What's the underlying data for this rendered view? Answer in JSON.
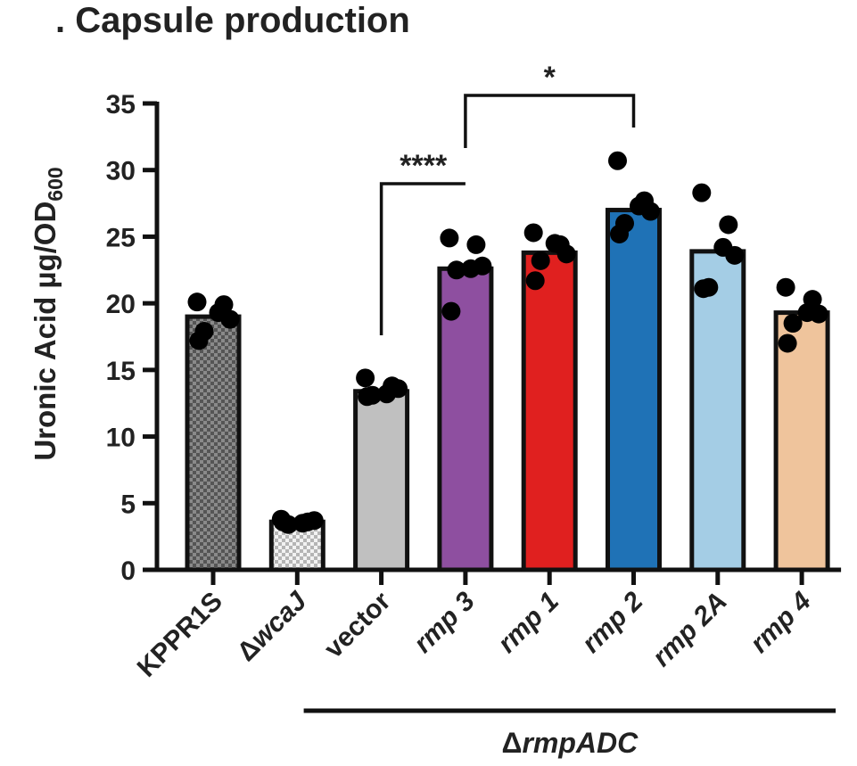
{
  "chart_data": {
    "type": "bar",
    "title": ". Capsule production",
    "ylabel_main": "Uronic Acid µg/OD",
    "ylabel_sub": "600",
    "ylim": [
      0,
      35
    ],
    "yticks": [
      0,
      5,
      10,
      15,
      20,
      25,
      30,
      35
    ],
    "categories": [
      {
        "prefix": "",
        "name": "KPPR1S",
        "italic": false
      },
      {
        "prefix": "Δ",
        "name": "wcaJ",
        "italic": true
      },
      {
        "prefix": "",
        "name": "vector",
        "italic": false
      },
      {
        "prefix": "",
        "name": "rmp 3",
        "italic": true
      },
      {
        "prefix": "",
        "name": "rmp 1",
        "italic": true
      },
      {
        "prefix": "",
        "name": "rmp 2",
        "italic": true
      },
      {
        "prefix": "",
        "name": "rmp 2A",
        "italic": true
      },
      {
        "prefix": "",
        "name": "rmp 4",
        "italic": true
      }
    ],
    "values": [
      19.0,
      3.6,
      13.4,
      22.6,
      23.8,
      27.0,
      23.9,
      19.3
    ],
    "colors": [
      "pattern-dark",
      "pattern-light",
      "#c0c0c0",
      "#8e4fa0",
      "#e0201f",
      "#1f72b6",
      "#a4cde5",
      "#efc49c"
    ],
    "points": [
      [
        20.1,
        19.9,
        19.3,
        18.8,
        17.9,
        17.2
      ],
      [
        3.8,
        3.6,
        3.5,
        3.7,
        3.4,
        3.6
      ],
      [
        14.4,
        13.8,
        13.2,
        13.6,
        13.1,
        13.0
      ],
      [
        24.9,
        24.4,
        22.6,
        22.8,
        22.5,
        19.4
      ],
      [
        25.3,
        24.4,
        24.5,
        23.7,
        23.2,
        21.7
      ],
      [
        30.7,
        27.7,
        27.3,
        26.9,
        26.0,
        25.2
      ],
      [
        28.3,
        25.9,
        24.2,
        23.6,
        21.2,
        21.1
      ],
      [
        21.2,
        20.3,
        19.3,
        19.2,
        18.5,
        17.0
      ]
    ],
    "significance": [
      {
        "from": 2,
        "to": 3,
        "label": "****"
      },
      {
        "from": 3,
        "to": 5,
        "label": "*"
      }
    ],
    "group": {
      "prefix": "Δ",
      "name": "rmpADC",
      "from": 2,
      "to": 7
    }
  }
}
